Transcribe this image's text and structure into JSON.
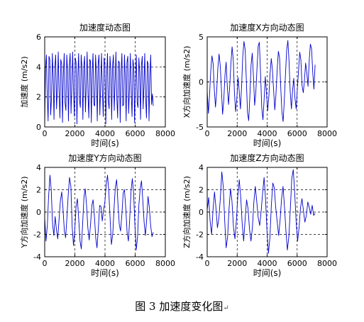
{
  "figure": {
    "caption": "图 3 加速度变化图",
    "caption_mark": "↵"
  },
  "chart_data": [
    {
      "type": "line",
      "title": "加速度动态图",
      "xlabel": "时间(s)",
      "ylabel": "加速度 (m/s2)",
      "xlim": [
        0,
        8000
      ],
      "ylim": [
        0,
        6
      ],
      "xticks": [
        0,
        2000,
        4000,
        6000,
        8000
      ],
      "yticks": [
        0,
        2,
        4,
        6
      ],
      "grid": "dashed at x=2000,4000,6000 and y=2,4",
      "color": "#0000cc",
      "x_range": [
        0,
        7200
      ],
      "y_range": [
        0,
        5
      ],
      "y": [
        0.1,
        3.9,
        4.8,
        2.1,
        0.4,
        4.7,
        4.5,
        0.8,
        1.9,
        4.9,
        3.2,
        0.5,
        4.0,
        4.8,
        1.2,
        2.6,
        5.0,
        2.3,
        0.6,
        4.5,
        4.2,
        0.3,
        3.5,
        4.9,
        1.6,
        1.1,
        4.8,
        3.7,
        0.4,
        4.1,
        4.9,
        0.9,
        2.8,
        5.0,
        2.5,
        0.7,
        4.6,
        4.3,
        0.2,
        3.3,
        4.9,
        1.8,
        1.3,
        4.8,
        3.9,
        0.5,
        4.0,
        4.7,
        1.0,
        2.9,
        5.0,
        2.2,
        0.6,
        4.5,
        4.4,
        0.3,
        3.6,
        4.9,
        1.5,
        1.4,
        4.8,
        3.5,
        0.4,
        4.2,
        4.8,
        0.8,
        2.7,
        4.9,
        2.4,
        0.7,
        4.6,
        4.1,
        0.2,
        3.4,
        4.9,
        1.7,
        1.2,
        4.7,
        3.8,
        0.5,
        4.0,
        4.8,
        1.1,
        3.0,
        5.0,
        2.0,
        0.6,
        4.4,
        4.3,
        0.3,
        3.7,
        4.9,
        1.4,
        1.5,
        4.8,
        3.3,
        0.4,
        4.3,
        4.7,
        0.9,
        2.6,
        4.9,
        2.3,
        0.7,
        4.5,
        4.0,
        0.3,
        3.2,
        4.8,
        1.6,
        1.3,
        4.6,
        3.6,
        0.5,
        4.1,
        4.7,
        1.2,
        2.8,
        4.9,
        2.1,
        0.6,
        4.4,
        4.2,
        0.4,
        3.4,
        4.8,
        1.5,
        2.2,
        1.4
      ]
    },
    {
      "type": "line",
      "title": "加速度X方向动态图",
      "xlabel": "时间(s)",
      "ylabel": "X方向加速度 (m/s2)",
      "xlim": [
        0,
        8000
      ],
      "ylim": [
        -5,
        5
      ],
      "xticks": [
        0,
        2000,
        4000,
        6000,
        8000
      ],
      "yticks": [
        -5,
        0,
        5
      ],
      "grid": "dashed at x=2000,4000,6000 and y=0",
      "color": "#0000cc",
      "x_range": [
        0,
        7200
      ],
      "y_range": [
        -4.5,
        4.6
      ],
      "y": [
        -1.0,
        -3.5,
        -1.5,
        1.2,
        2.9,
        2.0,
        -0.8,
        -2.8,
        -1.0,
        1.5,
        3.1,
        1.8,
        -0.9,
        -3.6,
        -2.0,
        0.8,
        2.2,
        -0.6,
        -2.5,
        -0.4,
        2.0,
        3.9,
        2.4,
        -1.2,
        -3.3,
        -1.8,
        0.5,
        -1.0,
        -3.0,
        -0.5,
        2.8,
        4.5,
        3.6,
        0.2,
        -3.4,
        -4.3,
        -1.5,
        1.8,
        3.2,
        0.6,
        -2.6,
        -1.2,
        1.5,
        4.0,
        4.4,
        1.0,
        -2.9,
        -4.2,
        -2.0,
        0.6,
        -1.3,
        -3.2,
        -1.6,
        0.9,
        2.6,
        1.4,
        -0.9,
        -3.1,
        -1.4,
        1.3,
        3.4,
        2.7,
        -0.5,
        -3.3,
        -4.4,
        -2.2,
        0.8,
        3.5,
        4.6,
        2.4,
        -1.1,
        -3.0,
        -1.0,
        0.4,
        -1.8,
        -3.0,
        -0.8,
        1.2,
        3.3,
        2.5,
        -0.4,
        -1.2,
        0.2,
        2.1,
        1.0,
        -0.5,
        2.2,
        4.2,
        3.7,
        1.0,
        -0.8,
        1.9
      ]
    },
    {
      "type": "line",
      "title": "加速度Y方向动态图",
      "xlabel": "时间(s)",
      "ylabel": "Y方向加速度 (m/s2)",
      "xlim": [
        0,
        8000
      ],
      "ylim": [
        -4,
        4
      ],
      "xticks": [
        0,
        2000,
        4000,
        6000,
        8000
      ],
      "yticks": [
        -4,
        -2,
        0,
        2,
        4
      ],
      "grid": "dashed at x=2000,4000,6000 and y=-2,0,2",
      "color": "#0000cc",
      "x_range": [
        0,
        7200
      ],
      "y_range": [
        -3.4,
        3.3
      ],
      "y": [
        -0.5,
        -2.6,
        -1.2,
        1.4,
        3.3,
        2.0,
        -1.1,
        -2.1,
        -0.4,
        -1.6,
        -2.4,
        -0.6,
        1.0,
        1.8,
        0.3,
        -1.7,
        -2.3,
        -0.5,
        1.6,
        3.1,
        2.3,
        -1.3,
        -3.0,
        -1.6,
        0.5,
        1.2,
        -0.6,
        -2.6,
        -3.3,
        -1.0,
        1.3,
        2.1,
        0.6,
        -1.4,
        -2.5,
        -1.2,
        0.6,
        1.1,
        -0.3,
        -2.3,
        -3.2,
        -1.5,
        0.6,
        0.5,
        -0.8,
        0.2,
        0.9,
        2.4,
        3.3,
        1.9,
        -0.6,
        -2.9,
        -2.0,
        0.3,
        2.2,
        2.9,
        0.8,
        -1.1,
        -1.7,
        -0.2,
        1.7,
        2.0,
        0.3,
        -1.8,
        -2.6,
        -0.6,
        1.9,
        3.0,
        1.7,
        -1.3,
        -3.4,
        -2.2,
        0.6,
        2.1,
        2.8,
        1.0,
        -0.9,
        -2.1,
        -0.6,
        1.4,
        0.4,
        -1.2,
        -2.2,
        -1.8
      ]
    },
    {
      "type": "line",
      "title": "加速度Z方向动态图",
      "xlabel": "时间(s)",
      "ylabel": "Z方向加速度 (m/s2)",
      "xlim": [
        0,
        8000
      ],
      "ylim": [
        -4,
        4
      ],
      "xticks": [
        0,
        2000,
        4000,
        6000,
        8000
      ],
      "yticks": [
        -4,
        -2,
        0,
        2,
        4
      ],
      "grid": "dashed at x=2000,4000,6000 and y=-2,0,2",
      "color": "#0000cc",
      "x_range": [
        0,
        7200
      ],
      "y_range": [
        -3.7,
        3.8
      ],
      "y": [
        0.2,
        1.3,
        -0.8,
        -2.0,
        0.2,
        1.8,
        0.4,
        -1.4,
        -0.6,
        1.2,
        3.6,
        2.3,
        -0.8,
        -3.2,
        -2.2,
        0.3,
        2.1,
        1.0,
        -1.3,
        -2.4,
        -0.8,
        1.5,
        2.9,
        1.3,
        -1.0,
        -2.6,
        -0.7,
        1.1,
        0.3,
        -1.5,
        -2.6,
        -1.4,
        0.9,
        2.3,
        0.9,
        -0.5,
        -1.2,
        0.1,
        1.7,
        3.1,
        1.2,
        -1.7,
        -3.7,
        -2.3,
        0.6,
        2.6,
        2.2,
        0.4,
        -0.9,
        -2.1,
        -0.7,
        1.2,
        2.3,
        0.5,
        -1.7,
        -3.4,
        -2.2,
        0.3,
        3.0,
        3.8,
        1.8,
        -0.9,
        -2.6,
        -1.4,
        0.4,
        1.2,
        0.1,
        -0.9,
        -0.3,
        0.9,
        0.4,
        -0.2,
        0.6,
        -0.3,
        -0.1
      ]
    }
  ]
}
